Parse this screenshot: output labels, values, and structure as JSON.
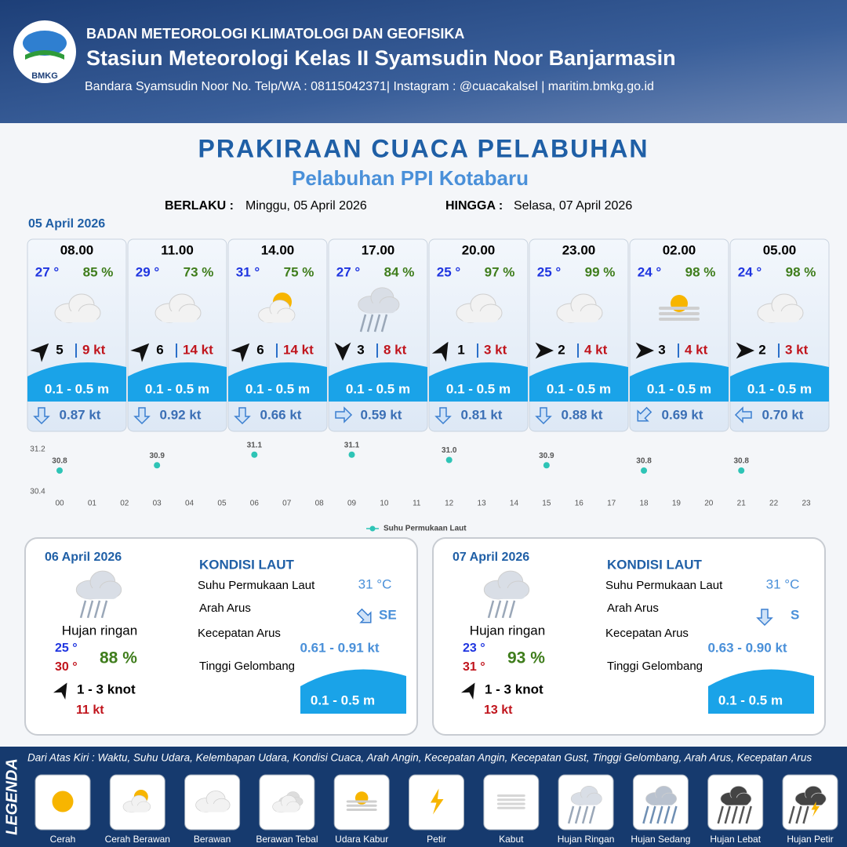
{
  "header": {
    "logo": "BMKG",
    "org": "BADAN METEOROLOGI KLIMATOLOGI DAN GEOFISIKA",
    "station": "Stasiun Meteorologi Kelas II Syamsudin Noor Banjarmasin",
    "contact": "Bandara Syamsudin Noor No. Telp/WA : 08115042371| Instagram : @cuacakalsel | maritim.bmkg.go.id"
  },
  "title": "PRAKIRAAN CUACA PELABUHAN",
  "subtitle": "Pelabuhan PPI Kotabaru",
  "valid_from_label": "BERLAKU :",
  "valid_from": "Minggu, 05 April 2026",
  "valid_to_label": "HINGGA :",
  "valid_to": "Selasa, 07 April 2026",
  "day1_date": "05 April 2026",
  "forecasts": [
    {
      "time": "08.00",
      "temp": "27 °",
      "humidity": "85 %",
      "wind": "5",
      "gust": "9 kt",
      "wave": "0.1 - 0.5 m",
      "current": "0.87 kt"
    },
    {
      "time": "11.00",
      "temp": "29 °",
      "humidity": "73 %",
      "wind": "6",
      "gust": "14 kt",
      "wave": "0.1 - 0.5 m",
      "current": "0.92 kt"
    },
    {
      "time": "14.00",
      "temp": "31 °",
      "humidity": "75 %",
      "wind": "6",
      "gust": "14 kt",
      "wave": "0.1 - 0.5 m",
      "current": "0.66 kt"
    },
    {
      "time": "17.00",
      "temp": "27 °",
      "humidity": "84 %",
      "wind": "3",
      "gust": "8 kt",
      "wave": "0.1 - 0.5 m",
      "current": "0.59 kt"
    },
    {
      "time": "20.00",
      "temp": "25 °",
      "humidity": "97 %",
      "wind": "1",
      "gust": "3 kt",
      "wave": "0.1 - 0.5 m",
      "current": "0.81 kt"
    },
    {
      "time": "23.00",
      "temp": "25 °",
      "humidity": "99 %",
      "wind": "2",
      "gust": "4 kt",
      "wave": "0.1 - 0.5 m",
      "current": "0.88 kt"
    },
    {
      "time": "02.00",
      "temp": "24 °",
      "humidity": "98 %",
      "wind": "3",
      "gust": "4 kt",
      "wave": "0.1 - 0.5 m",
      "current": "0.69 kt"
    },
    {
      "time": "05.00",
      "temp": "24 °",
      "humidity": "98 %",
      "wind": "2",
      "gust": "3 kt",
      "wave": "0.1 - 0.5 m",
      "current": "0.70 kt"
    }
  ],
  "chart_data": {
    "type": "scatter",
    "x": [
      0,
      3,
      6,
      9,
      12,
      15,
      18,
      21
    ],
    "series": [
      {
        "name": "Suhu Permukaan Laut",
        "color": "#2ec4b6",
        "values": [
          30.8,
          30.9,
          31.1,
          31.1,
          31.0,
          30.9,
          30.8,
          30.8
        ],
        "value_labels": [
          "30.8",
          "30.9",
          "31.1",
          "31.1",
          "31.0",
          "30.9",
          "30.8",
          "30.8"
        ]
      }
    ],
    "xlim": [
      0,
      23
    ],
    "xticks": [
      {
        "value": 0,
        "label": "00"
      },
      {
        "value": 1,
        "label": "01"
      },
      {
        "value": 2,
        "label": "02"
      },
      {
        "value": 3,
        "label": "03"
      },
      {
        "value": 4,
        "label": "04"
      },
      {
        "value": 5,
        "label": "05"
      },
      {
        "value": 6,
        "label": "06"
      },
      {
        "value": 7,
        "label": "07"
      },
      {
        "value": 8,
        "label": "08"
      },
      {
        "value": 9,
        "label": "09"
      },
      10,
      11,
      12,
      13,
      14,
      15,
      16,
      17,
      18,
      19,
      20,
      21,
      22,
      23
    ],
    "ylim": [
      30.4,
      31.2
    ],
    "yticks": [
      30.4,
      31.2
    ],
    "grid": false,
    "legend": "bottom"
  },
  "days": [
    {
      "date": "06 April 2026",
      "condition": "Hujan ringan",
      "temp_min": "25 °",
      "temp_max": "30 °",
      "humidity": "88 %",
      "wind": "1 - 3 knot",
      "gust": "11 kt",
      "sea_heading": "KONDISI LAUT",
      "sst_label": "Suhu Permukaan Laut",
      "sst": "31 °C",
      "dir_label": "Arah Arus",
      "dir": "SE",
      "speed_label": "Kecepatan Arus",
      "speed": "0.61 - 0.91 kt",
      "wave_label": "Tinggi Gelombang",
      "wave": "0.1 - 0.5 m"
    },
    {
      "date": "07 April 2026",
      "condition": "Hujan ringan",
      "temp_min": "23 °",
      "temp_max": "31 °",
      "humidity": "93 %",
      "wind": "1 - 3 knot",
      "gust": "13 kt",
      "sea_heading": "KONDISI LAUT",
      "sst_label": "Suhu Permukaan Laut",
      "sst": "31 °C",
      "dir_label": "Arah Arus",
      "dir": "S",
      "speed_label": "Kecepatan Arus",
      "speed": "0.63 - 0.90 kt",
      "wave_label": "Tinggi Gelombang",
      "wave": "0.1 - 0.5 m"
    }
  ],
  "legend": {
    "title": "LEGENDA",
    "description": "Dari Atas Kiri : Waktu, Suhu Udara, Kelembapan Udara, Kondisi Cuaca, Arah Angin, Kecepatan Angin, Kecepatan Gust, Tinggi Gelombang, Arah Arus, Kecepatan Arus",
    "items": [
      "Cerah",
      "Cerah Berawan",
      "Berawan",
      "Berawan Tebal",
      "Udara Kabur",
      "Petir",
      "Kabut",
      "Hujan Ringan",
      "Hujan Sedang",
      "Hujan Lebat",
      "Hujan Petir"
    ]
  }
}
